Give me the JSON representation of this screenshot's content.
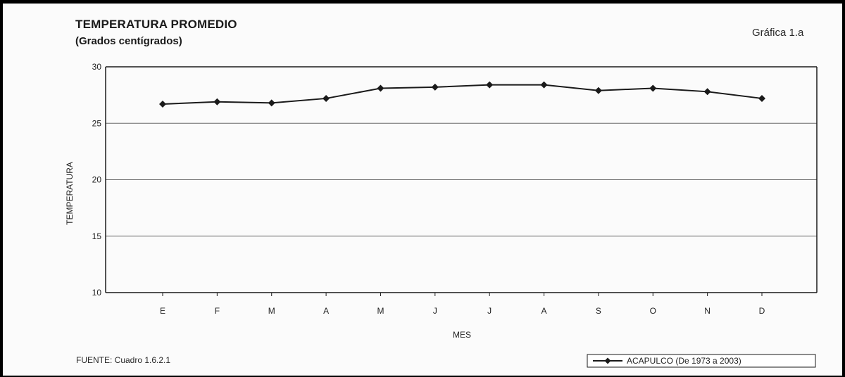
{
  "header": {
    "title": "TEMPERATURA PROMEDIO",
    "subtitle": "(Grados centígrados)",
    "figure_label": "Gráfica 1.a"
  },
  "footer": {
    "source": "FUENTE: Cuadro 1.6.2.1"
  },
  "chart_data": {
    "type": "line",
    "title": "TEMPERATURA PROMEDIO",
    "subtitle": "(Grados centígrados)",
    "xlabel": "MES",
    "ylabel": "TEMPERATURA",
    "categories": [
      "E",
      "F",
      "M",
      "A",
      "M",
      "J",
      "J",
      "A",
      "S",
      "O",
      "N",
      "D"
    ],
    "series": [
      {
        "name": "ACAPULCO (De 1973 a 2003)",
        "values": [
          26.7,
          26.9,
          26.8,
          27.2,
          28.1,
          28.2,
          28.4,
          28.4,
          27.9,
          28.1,
          27.8,
          27.2
        ],
        "color": "#1a1a1a",
        "marker": "diamond"
      }
    ],
    "ylim": [
      10,
      30
    ],
    "yticks": [
      "10",
      "15",
      "20",
      "25",
      "30"
    ],
    "grid": true,
    "legend_position": "bottom-right"
  }
}
